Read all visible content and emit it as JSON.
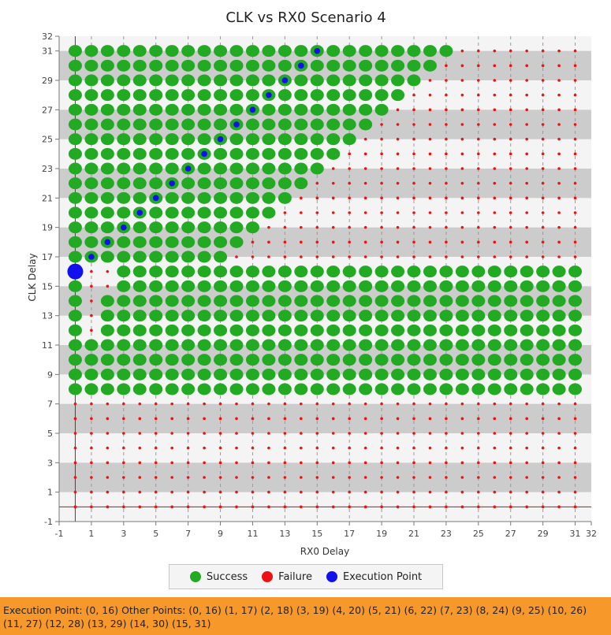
{
  "chart_data": {
    "type": "scatter",
    "title": "CLK vs RX0 Scenario 4",
    "xlabel": "RX0 Delay",
    "ylabel": "CLK Delay",
    "xlim": [
      -1,
      32
    ],
    "ylim": [
      -1,
      32
    ],
    "x_ticks": [
      -1,
      1,
      3,
      5,
      7,
      9,
      11,
      13,
      15,
      17,
      19,
      21,
      23,
      25,
      27,
      29,
      31,
      32
    ],
    "y_ticks": [
      -1,
      1,
      3,
      5,
      7,
      9,
      11,
      13,
      15,
      17,
      19,
      21,
      23,
      25,
      27,
      29,
      31,
      32
    ],
    "grid": true,
    "legend_position": "bottom-center",
    "series": [
      {
        "name": "Success",
        "color": "#22aa22"
      },
      {
        "name": "Failure",
        "color": "#ee1111"
      },
      {
        "name": "Execution Point",
        "color": "#1111ee"
      }
    ],
    "success_rule": "y >= 8, y <= 31, y - 8 <= 3x when y <= 16, x <= y - 8 when y > 16",
    "execution_point": [
      0,
      16
    ],
    "other_points": [
      [
        0,
        16
      ],
      [
        1,
        17
      ],
      [
        2,
        18
      ],
      [
        3,
        19
      ],
      [
        4,
        20
      ],
      [
        5,
        21
      ],
      [
        6,
        22
      ],
      [
        7,
        23
      ],
      [
        8,
        24
      ],
      [
        9,
        25
      ],
      [
        10,
        26
      ],
      [
        11,
        27
      ],
      [
        12,
        28
      ],
      [
        13,
        29
      ],
      [
        14,
        30
      ],
      [
        15,
        31
      ]
    ]
  },
  "status": {
    "text": "Execution Point: (0, 16) Other Points: (0, 16) (1, 17) (2, 18) (3, 19) (4, 20) (5, 21) (6, 22) (7, 23) (8, 24) (9, 25) (10, 26) (11, 27) (12, 28) (13, 29) (14, 30) (15, 31)"
  }
}
